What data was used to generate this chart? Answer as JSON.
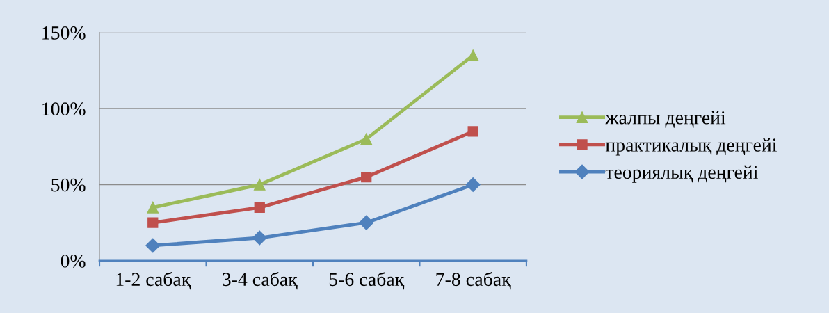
{
  "chart_data": {
    "type": "line",
    "categories": [
      "1-2 сабақ",
      "3-4 сабақ",
      "5-6 сабақ",
      "7-8 сабақ"
    ],
    "series": [
      {
        "name": "жалпы деңгейі",
        "color": "#9bbb59",
        "marker": "triangle",
        "values": [
          35,
          50,
          80,
          135
        ]
      },
      {
        "name": "практикалық деңгейі",
        "color": "#c0504d",
        "marker": "square",
        "values": [
          25,
          35,
          55,
          85
        ]
      },
      {
        "name": "теориялық деңгейі",
        "color": "#4f81bd",
        "marker": "diamond",
        "values": [
          10,
          15,
          25,
          50
        ]
      }
    ],
    "ylim": [
      0,
      150
    ],
    "yticks": [
      {
        "value": 0,
        "label": "0%"
      },
      {
        "value": 50,
        "label": "50%"
      },
      {
        "value": 100,
        "label": "100%"
      },
      {
        "value": 150,
        "label": "150%"
      }
    ],
    "grid": "y",
    "legend": "right",
    "line_style": "solid"
  }
}
